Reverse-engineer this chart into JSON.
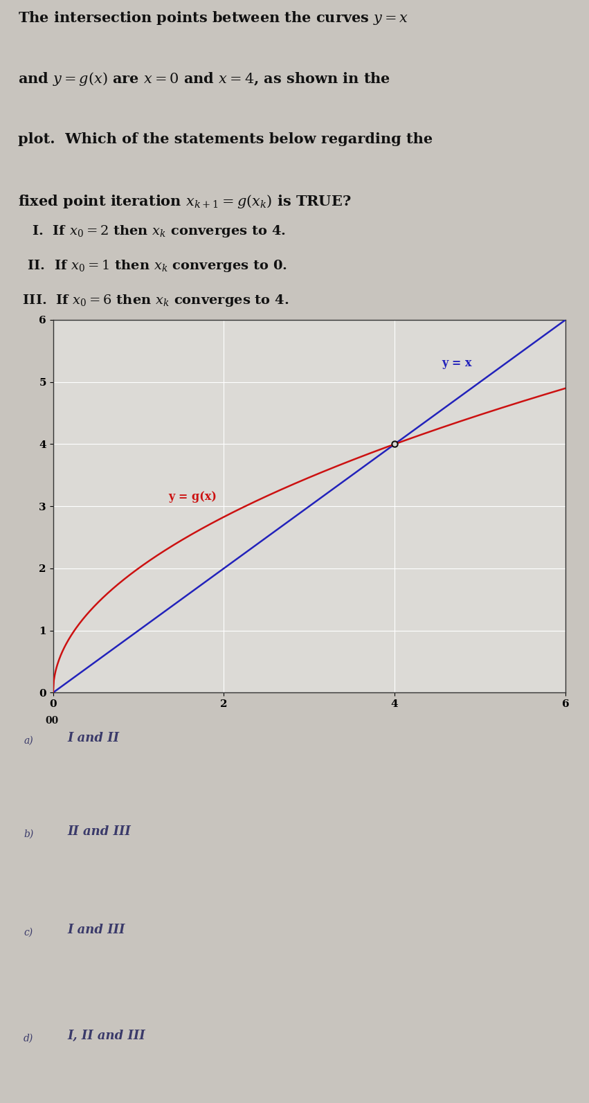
{
  "title_line1": "The intersection points between the curves y = x",
  "title_line2": "and y = g(x) are x = 0 and x = 4, as shown in the",
  "title_line3": "plot.  Which of the statements below regarding the",
  "title_line4": "fixed point iteration x_{k+1} = g(x_k) is TRUE?",
  "stmt_I": "I.   If x_0 = 2 then x_k converges to 4.",
  "stmt_II": "II.  If x_0 = 1 then x_k converges to 0.",
  "stmt_III": "III. If x_0 = 6 then x_k converges to 4.",
  "label_yx": "y = x",
  "label_gx": "y = g(x)",
  "xlim": [
    0,
    6
  ],
  "ylim": [
    0,
    6
  ],
  "xticks": [
    0,
    2,
    4,
    6
  ],
  "yticks": [
    0,
    1,
    2,
    3,
    4,
    5,
    6
  ],
  "line_color": "#2222bb",
  "curve_color": "#cc1111",
  "bg_color": "#c8c4be",
  "plot_bg": "#dcdad6",
  "grid_color": "#ffffff",
  "text_color": "#111111",
  "answer_color": "#3a3a6a",
  "answers": [
    [
      "a)",
      "I and II"
    ],
    [
      "b)",
      "II and III"
    ],
    [
      "c)",
      "I and III"
    ],
    [
      "d)",
      "I, II and III"
    ]
  ]
}
